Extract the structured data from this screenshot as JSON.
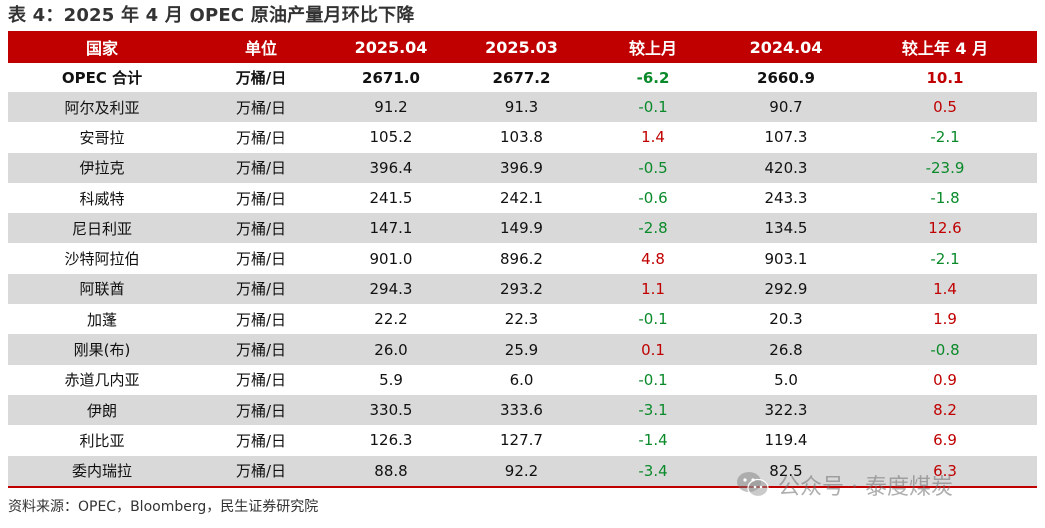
{
  "title": "表 4：2025 年 4 月 OPEC 原油产量月环比下降",
  "headers": [
    "国家",
    "单位",
    "2025.04",
    "2025.03",
    "较上月",
    "2024.04",
    "较上年 4 月"
  ],
  "rows": [
    {
      "country": "OPEC 合计",
      "unit": "万桶/日",
      "apr25": "2671.0",
      "mar25": "2677.2",
      "mom": "-6.2",
      "apr24": "2660.9",
      "yoy": "10.1"
    },
    {
      "country": "阿尔及利亚",
      "unit": "万桶/日",
      "apr25": "91.2",
      "mar25": "91.3",
      "mom": "-0.1",
      "apr24": "90.7",
      "yoy": "0.5"
    },
    {
      "country": "安哥拉",
      "unit": "万桶/日",
      "apr25": "105.2",
      "mar25": "103.8",
      "mom": "1.4",
      "apr24": "107.3",
      "yoy": "-2.1"
    },
    {
      "country": "伊拉克",
      "unit": "万桶/日",
      "apr25": "396.4",
      "mar25": "396.9",
      "mom": "-0.5",
      "apr24": "420.3",
      "yoy": "-23.9"
    },
    {
      "country": "科威特",
      "unit": "万桶/日",
      "apr25": "241.5",
      "mar25": "242.1",
      "mom": "-0.6",
      "apr24": "243.3",
      "yoy": "-1.8"
    },
    {
      "country": "尼日利亚",
      "unit": "万桶/日",
      "apr25": "147.1",
      "mar25": "149.9",
      "mom": "-2.8",
      "apr24": "134.5",
      "yoy": "12.6"
    },
    {
      "country": "沙特阿拉伯",
      "unit": "万桶/日",
      "apr25": "901.0",
      "mar25": "896.2",
      "mom": "4.8",
      "apr24": "903.1",
      "yoy": "-2.1"
    },
    {
      "country": "阿联酋",
      "unit": "万桶/日",
      "apr25": "294.3",
      "mar25": "293.2",
      "mom": "1.1",
      "apr24": "292.9",
      "yoy": "1.4"
    },
    {
      "country": "加蓬",
      "unit": "万桶/日",
      "apr25": "22.2",
      "mar25": "22.3",
      "mom": "-0.1",
      "apr24": "20.3",
      "yoy": "1.9"
    },
    {
      "country": "刚果(布)",
      "unit": "万桶/日",
      "apr25": "26.0",
      "mar25": "25.9",
      "mom": "0.1",
      "apr24": "26.8",
      "yoy": "-0.8"
    },
    {
      "country": "赤道几内亚",
      "unit": "万桶/日",
      "apr25": "5.9",
      "mar25": "6.0",
      "mom": "-0.1",
      "apr24": "5.0",
      "yoy": "0.9"
    },
    {
      "country": "伊朗",
      "unit": "万桶/日",
      "apr25": "330.5",
      "mar25": "333.6",
      "mom": "-3.1",
      "apr24": "322.3",
      "yoy": "8.2"
    },
    {
      "country": "利比亚",
      "unit": "万桶/日",
      "apr25": "126.3",
      "mar25": "127.7",
      "mom": "-1.4",
      "apr24": "119.4",
      "yoy": "6.9"
    },
    {
      "country": "委内瑞拉",
      "unit": "万桶/日",
      "apr25": "88.8",
      "mar25": "92.2",
      "mom": "-3.4",
      "apr24": "82.5",
      "yoy": "6.3"
    }
  ],
  "source": "资料来源：OPEC，Bloomberg，民生证券研究院",
  "watermark": {
    "text": "公众号 · 泰度煤炭",
    "icon": "wechat-icon"
  },
  "colors": {
    "header_bg": "#c00000",
    "positive": "#c00000",
    "negative": "#0a8a2a",
    "alt_row": "#d9d9d9"
  }
}
